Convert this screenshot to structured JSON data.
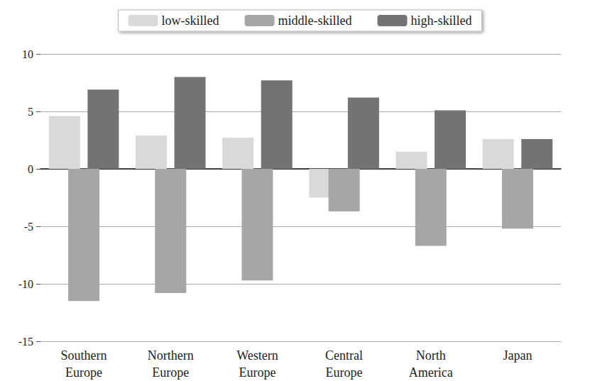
{
  "chart_data": {
    "type": "bar",
    "categories": [
      "Southern Europe",
      "Northern Europe",
      "Western Europe",
      "Central Europe",
      "North America",
      "Japan"
    ],
    "series": [
      {
        "name": "low-skilled",
        "color": "#d9d9d9",
        "values": [
          4.6,
          2.9,
          2.7,
          -2.5,
          1.5,
          2.6
        ]
      },
      {
        "name": "middle-skilled",
        "color": "#a6a6a6",
        "values": [
          -11.5,
          -10.8,
          -9.7,
          -3.7,
          -6.7,
          -5.2
        ]
      },
      {
        "name": "high-skilled",
        "color": "#737373",
        "values": [
          6.9,
          8.0,
          7.7,
          6.2,
          5.1,
          2.6
        ]
      }
    ],
    "ylim": [
      -15,
      10
    ],
    "yticks": [
      -15,
      -10,
      -5,
      0,
      5,
      10
    ],
    "grid": true,
    "legend": "top"
  }
}
